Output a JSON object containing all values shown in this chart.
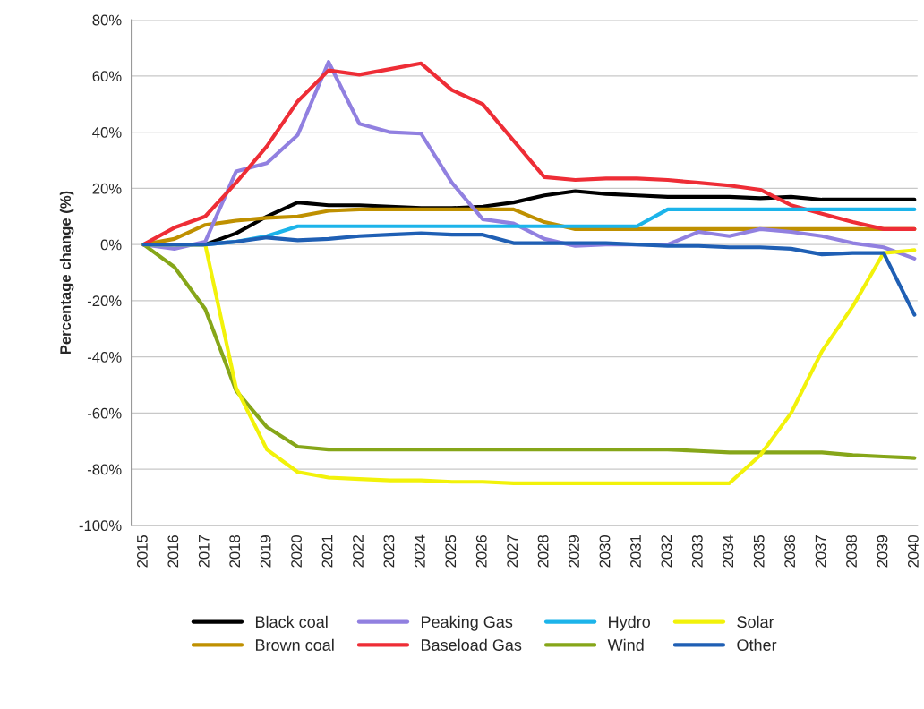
{
  "chart_data": {
    "type": "line",
    "ylabel": "Percentage change (%)",
    "categories": [
      "2015",
      "2016",
      "2017",
      "2018",
      "2019",
      "2020",
      "2021",
      "2022",
      "2023",
      "2024",
      "2025",
      "2026",
      "2027",
      "2028",
      "2029",
      "2030",
      "2031",
      "2032",
      "2033",
      "2034",
      "2035",
      "2036",
      "2037",
      "2038",
      "2039",
      "2040"
    ],
    "series": [
      {
        "name": "Black coal",
        "color": "#000000",
        "values": [
          0,
          0,
          0,
          4,
          10,
          15,
          14,
          14,
          13.5,
          13,
          13,
          13.5,
          15,
          17.5,
          19,
          18,
          17.5,
          17,
          17,
          17,
          16.5,
          17,
          16,
          16,
          16,
          16
        ]
      },
      {
        "name": "Brown coal",
        "color": "#bf9000",
        "values": [
          0,
          2,
          7,
          8.5,
          9.5,
          10,
          12,
          12.5,
          12.5,
          12.5,
          12.5,
          12.5,
          12.5,
          8,
          5.5,
          5.5,
          5.5,
          5.5,
          5.5,
          5.5,
          5.5,
          5.5,
          5.5,
          5.5,
          5.5,
          5.5
        ]
      },
      {
        "name": "Peaking Gas",
        "color": "#9180e0",
        "values": [
          0,
          -1.5,
          1,
          26,
          29,
          39,
          65,
          43,
          40,
          39.5,
          22,
          9,
          7.5,
          2,
          -0.5,
          0,
          0,
          0,
          4.5,
          3,
          5.5,
          4.5,
          3,
          0.5,
          -1,
          -5
        ]
      },
      {
        "name": "Baseload Gas",
        "color": "#ee2d36",
        "values": [
          0,
          6,
          10,
          22,
          35,
          51,
          62,
          60.5,
          62.5,
          64.5,
          55,
          50,
          37,
          24,
          23,
          23.5,
          23.5,
          23,
          22,
          21,
          19.5,
          14,
          11,
          8,
          5.5,
          5.5
        ]
      },
      {
        "name": "Hydro",
        "color": "#1cb4ea",
        "values": [
          0,
          0,
          0,
          1,
          3,
          6.5,
          6.5,
          6.5,
          6.5,
          6.5,
          6.5,
          6.5,
          6.5,
          6.5,
          6.5,
          6.5,
          6.5,
          12.5,
          12.5,
          12.5,
          12.5,
          12.5,
          12.5,
          12.5,
          12.5,
          12.5
        ]
      },
      {
        "name": "Wind",
        "color": "#86a619",
        "values": [
          0,
          -8,
          -23,
          -52,
          -65,
          -72,
          -73,
          -73,
          -73,
          -73,
          -73,
          -73,
          -73,
          -73,
          -73,
          -73,
          -73,
          -73,
          -73.5,
          -74,
          -74,
          -74,
          -74,
          -75,
          -75.5,
          -76
        ]
      },
      {
        "name": "Solar",
        "color": "#f2f20a",
        "values": [
          0,
          0,
          0,
          -51,
          -73,
          -81,
          -83,
          -83.5,
          -84,
          -84,
          -84.5,
          -84.5,
          -85,
          -85,
          -85,
          -85,
          -85,
          -85,
          -85,
          -85,
          -75,
          -60,
          -38,
          -22,
          -3,
          -2
        ]
      },
      {
        "name": "Other",
        "color": "#1f5fb4",
        "values": [
          0,
          0,
          0,
          1,
          2.5,
          1.5,
          2,
          3,
          3.5,
          4,
          3.5,
          3.5,
          0.5,
          0.5,
          0.5,
          0.5,
          0,
          -0.5,
          -0.5,
          -1,
          -1,
          -1.5,
          -3.5,
          -3,
          -3,
          -25
        ]
      }
    ],
    "ylim": [
      -100,
      80
    ],
    "yticks": [
      {
        "value": -100,
        "label": "-100%"
      },
      {
        "value": -80,
        "label": "-80%"
      },
      {
        "value": -60,
        "label": "-60%"
      },
      {
        "value": -40,
        "label": "-40%"
      },
      {
        "value": -20,
        "label": "-20%"
      },
      {
        "value": 0,
        "label": "0%"
      },
      {
        "value": 20,
        "label": "20%"
      },
      {
        "value": 40,
        "label": "40%"
      },
      {
        "value": 60,
        "label": "60%"
      },
      {
        "value": 80,
        "label": "80%"
      }
    ],
    "grid": "y",
    "legend": "bottom",
    "line_style": "solid"
  }
}
